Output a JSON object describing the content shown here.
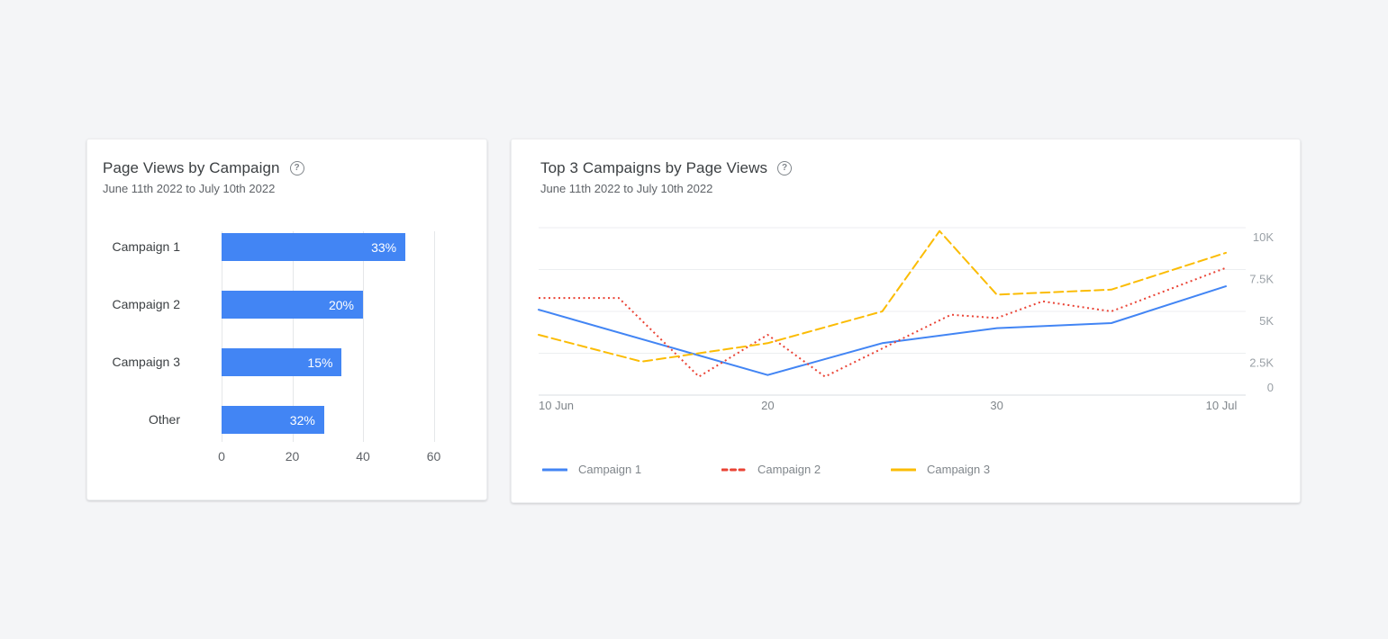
{
  "colors": {
    "page_background": "#F4F5F7",
    "card_background": "#FFFFFF",
    "accent_blue": "#4285F4",
    "accent_red": "#EA4335",
    "accent_yellow": "#FBBC04",
    "title_text": "#3C4043",
    "subtitle_text": "#5F6368",
    "axis_text": "#9AA0A6"
  },
  "left_card": {
    "title": "Page Views by Campaign",
    "subtitle": "June 11th 2022 to July 10th 2022",
    "help_icon": "help-circle",
    "help_glyph": "?"
  },
  "right_card": {
    "title": "Top 3 Campaigns by Page Views",
    "subtitle": "June 11th 2022 to July 10th 2022",
    "help_icon": "help-circle",
    "help_glyph": "?"
  },
  "chart_data": [
    {
      "type": "bar",
      "orientation": "horizontal",
      "title": "Page Views by Campaign",
      "categories": [
        "Campaign 1",
        "Campaign 2",
        "Campaign 3",
        "Other"
      ],
      "axis_values": [
        52,
        40,
        34,
        29
      ],
      "bar_labels": [
        "33%",
        "20%",
        "15%",
        "32%"
      ],
      "x_ticks": [
        0,
        20,
        40,
        60
      ],
      "xlim": [
        0,
        60
      ],
      "bar_color": "#4285F4",
      "grid": "vertical"
    },
    {
      "type": "line",
      "title": "Top 3 Campaigns by Page Views",
      "x_axis": "date (10 Jun - 10 Jul 2022), x in days since 10 Jun",
      "xlim": [
        0,
        30
      ],
      "ylim": [
        0,
        10000
      ],
      "x_ticks": [
        {
          "x": 0,
          "label": "10 Jun"
        },
        {
          "x": 10,
          "label": "20"
        },
        {
          "x": 20,
          "label": "30"
        },
        {
          "x": 30,
          "label": "10 Jul"
        }
      ],
      "y_ticks": [
        {
          "value": 0,
          "label": "0"
        },
        {
          "value": 2500,
          "label": "2.5K"
        },
        {
          "value": 5000,
          "label": "5K"
        },
        {
          "value": 7500,
          "label": "7.5K"
        },
        {
          "value": 10000,
          "label": "10K"
        }
      ],
      "grid": "horizontal",
      "legend_position": "bottom",
      "series": [
        {
          "name": "Campaign 1",
          "color": "#4285F4",
          "style": "solid",
          "points": [
            {
              "x": 0,
              "y": 5100
            },
            {
              "x": 10,
              "y": 1200
            },
            {
              "x": 15,
              "y": 3100
            },
            {
              "x": 20,
              "y": 4000
            },
            {
              "x": 25,
              "y": 4300
            },
            {
              "x": 30,
              "y": 6500
            }
          ]
        },
        {
          "name": "Campaign 2",
          "color": "#EA4335",
          "style": "dotted",
          "points": [
            {
              "x": 0,
              "y": 5800
            },
            {
              "x": 3.5,
              "y": 5800
            },
            {
              "x": 7,
              "y": 1100
            },
            {
              "x": 10,
              "y": 3600
            },
            {
              "x": 12.5,
              "y": 1100
            },
            {
              "x": 18,
              "y": 4800
            },
            {
              "x": 20,
              "y": 4600
            },
            {
              "x": 22,
              "y": 5600
            },
            {
              "x": 25,
              "y": 5000
            },
            {
              "x": 30,
              "y": 7600
            }
          ]
        },
        {
          "name": "Campaign 3",
          "color": "#FBBC04",
          "style": "dashed",
          "points": [
            {
              "x": 0,
              "y": 3600
            },
            {
              "x": 4.5,
              "y": 2000
            },
            {
              "x": 10,
              "y": 3100
            },
            {
              "x": 15,
              "y": 5000
            },
            {
              "x": 17.5,
              "y": 9800
            },
            {
              "x": 20,
              "y": 6000
            },
            {
              "x": 25,
              "y": 6300
            },
            {
              "x": 30,
              "y": 8500
            }
          ]
        }
      ]
    }
  ]
}
